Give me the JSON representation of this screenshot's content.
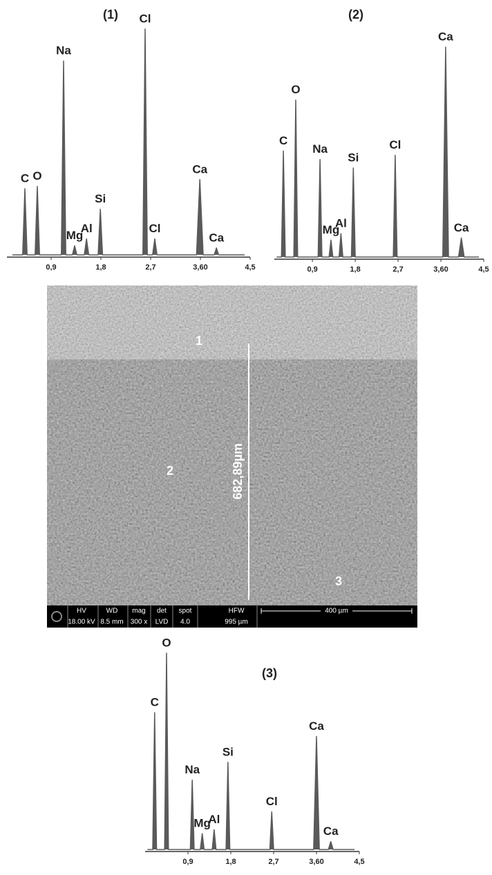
{
  "chart_data": [
    {
      "type": "line",
      "title": "(1)",
      "color": "#5a5a5a",
      "xlim": [
        0.1,
        4.5
      ],
      "ylim": [
        0,
        100
      ],
      "xticks": [
        {
          "value": 0.9,
          "label": "0,9"
        },
        {
          "value": 1.8,
          "label": "1,8"
        },
        {
          "value": 2.7,
          "label": "2,7"
        },
        {
          "value": 3.6,
          "label": "3,60"
        },
        {
          "value": 4.5,
          "label": "4,5"
        }
      ],
      "series": [
        {
          "name": "(1)",
          "color": "#5a5a5a",
          "x": [
            0.2,
            0.385,
            0.425,
            0.465,
            0.61,
            0.65,
            0.69,
            1.085,
            1.125,
            1.165,
            1.285,
            1.325,
            1.365,
            1.5,
            1.54,
            1.58,
            1.75,
            1.79,
            1.83,
            2.56,
            2.6,
            2.64,
            2.735,
            2.775,
            2.815,
            3.53,
            3.59,
            3.65,
            3.85,
            3.89,
            3.93,
            4.4
          ],
          "values": [
            1,
            1,
            30,
            1,
            1,
            31,
            1,
            1,
            86,
            1,
            1,
            5,
            1,
            1,
            8,
            1,
            1,
            21,
            1,
            1,
            100,
            1,
            1,
            8,
            1,
            1,
            34,
            1,
            1,
            4,
            1,
            1
          ]
        }
      ],
      "annotations": [
        {
          "text": "C",
          "x": 0.425
        },
        {
          "text": "O",
          "x": 0.65
        },
        {
          "text": "Na",
          "x": 1.125
        },
        {
          "text": "Mg",
          "x": 1.325
        },
        {
          "text": "Al",
          "x": 1.54
        },
        {
          "text": "Si",
          "x": 1.79
        },
        {
          "text": "Cl",
          "x": 2.6
        },
        {
          "text": "Cl",
          "x": 2.775
        },
        {
          "text": "Ca",
          "x": 3.59
        },
        {
          "text": "Ca",
          "x": 3.89
        }
      ]
    },
    {
      "type": "line",
      "title": "(2)",
      "color": "#5a5a5a",
      "xlim": [
        0.1,
        4.5
      ],
      "ylim": [
        0,
        100
      ],
      "xticks": [
        {
          "value": 0.9,
          "label": "0,9"
        },
        {
          "value": 1.8,
          "label": "1,8"
        },
        {
          "value": 2.7,
          "label": "2,7"
        },
        {
          "value": 3.6,
          "label": "3,60"
        },
        {
          "value": 4.5,
          "label": "4,5"
        }
      ],
      "series": [
        {
          "name": "(2)",
          "color": "#5a5a5a",
          "x": [
            0.15,
            0.25,
            0.29,
            0.33,
            0.51,
            0.55,
            0.59,
            1.02,
            1.06,
            1.1,
            1.25,
            1.29,
            1.33,
            1.46,
            1.5,
            1.54,
            1.72,
            1.76,
            1.8,
            2.6,
            2.64,
            2.68,
            3.64,
            3.7,
            3.76,
            3.97,
            4.03,
            4.09,
            4.4
          ],
          "values": [
            1,
            1,
            51,
            1,
            1,
            75,
            1,
            1,
            47,
            1,
            1,
            9,
            1,
            1,
            12,
            1,
            1,
            43,
            1,
            1,
            49,
            1,
            1,
            100,
            1,
            1,
            10,
            1,
            1
          ]
        }
      ],
      "annotations": [
        {
          "text": "C",
          "x": 0.29
        },
        {
          "text": "O",
          "x": 0.55
        },
        {
          "text": "Na",
          "x": 1.06
        },
        {
          "text": "Mg",
          "x": 1.29
        },
        {
          "text": "Al",
          "x": 1.5
        },
        {
          "text": "Si",
          "x": 1.76
        },
        {
          "text": "Cl",
          "x": 2.64
        },
        {
          "text": "Ca",
          "x": 3.7
        },
        {
          "text": "Ca",
          "x": 4.03
        }
      ]
    },
    {
      "type": "line",
      "title": "(3)",
      "color": "#5a5a5a",
      "xlim": [
        0,
        4.5
      ],
      "ylim": [
        0,
        100
      ],
      "xticks": [
        {
          "value": 0.9,
          "label": "0,9"
        },
        {
          "value": 1.8,
          "label": "1,8"
        },
        {
          "value": 2.7,
          "label": "2,7"
        },
        {
          "value": 3.6,
          "label": "3,60"
        },
        {
          "value": 4.5,
          "label": "4,5"
        }
      ],
      "series": [
        {
          "name": "(3)",
          "color": "#5a5a5a",
          "x": [
            0.05,
            0.16,
            0.2,
            0.24,
            0.41,
            0.45,
            0.49,
            0.95,
            0.99,
            1.03,
            1.16,
            1.2,
            1.24,
            1.41,
            1.45,
            1.49,
            1.7,
            1.74,
            1.78,
            2.62,
            2.66,
            2.7,
            3.54,
            3.6,
            3.66,
            3.85,
            3.9,
            3.95,
            4.4
          ],
          "values": [
            1,
            1,
            70,
            1,
            1,
            100,
            1,
            1,
            36,
            1,
            1,
            9,
            1,
            1,
            11,
            1,
            1,
            45,
            1,
            1,
            20,
            1,
            1,
            58,
            1,
            1,
            5,
            1,
            1
          ]
        }
      ],
      "annotations": [
        {
          "text": "C",
          "x": 0.2
        },
        {
          "text": "O",
          "x": 0.45
        },
        {
          "text": "Na",
          "x": 0.99
        },
        {
          "text": "Mg",
          "x": 1.2
        },
        {
          "text": "Al",
          "x": 1.45
        },
        {
          "text": "Si",
          "x": 1.74
        },
        {
          "text": "Cl",
          "x": 2.66
        },
        {
          "text": "Ca",
          "x": 3.6
        },
        {
          "text": "Ca",
          "x": 3.9
        }
      ]
    }
  ],
  "image": {
    "points": [
      "1",
      "2",
      "3"
    ],
    "measurement": "682,89µm",
    "info_headers": [
      "HV",
      "WD",
      "mag",
      "det",
      "spot",
      "HFW"
    ],
    "info_values": [
      "18.00 kV",
      "8.5 mm",
      "300 x",
      "LVD",
      "4.0",
      "995 µm"
    ],
    "scale_bar": "400 µm"
  }
}
